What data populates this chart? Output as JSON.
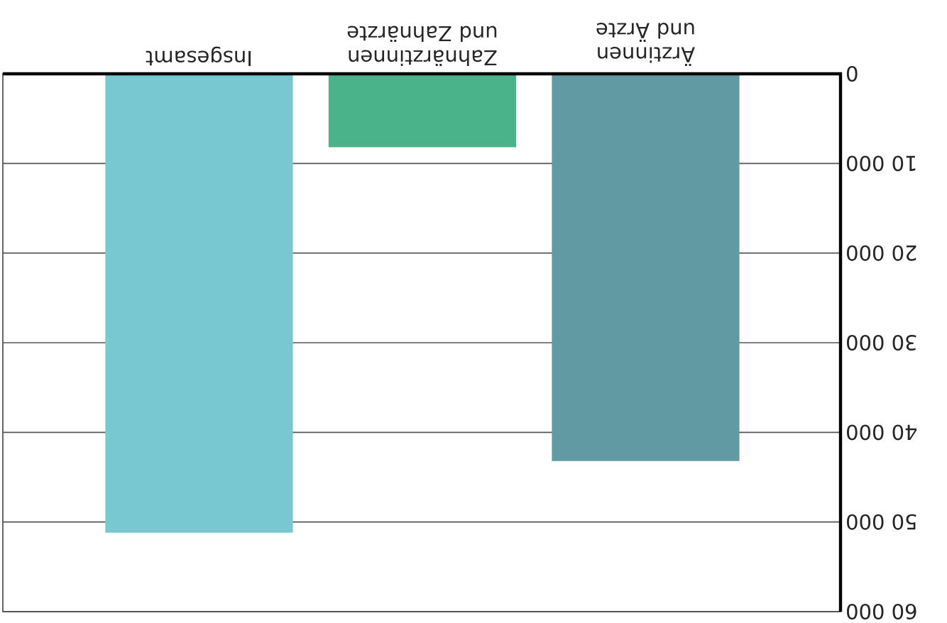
{
  "chart_data": {
    "type": "bar",
    "categories": [
      "Insgesamt",
      "Zahnärztinnen und Zahnärzte",
      "Ärztinnen und Ärzte"
    ],
    "values": [
      51200,
      8200,
      43200
    ],
    "colors": [
      "#77c8d0",
      "#4bb38a",
      "#629aa3"
    ],
    "ylim": [
      60000,
      0
    ],
    "yticks": [
      0,
      {
        "value": 10000,
        "label": "10 000"
      },
      {
        "value": 20000,
        "label": "20 000"
      },
      {
        "value": 30000,
        "label": "30 000"
      },
      {
        "value": 40000,
        "label": "40 000"
      },
      {
        "value": 50000,
        "label": "50 000"
      },
      {
        "value": 60000,
        "label": "60 000"
      }
    ],
    "grid": "y"
  }
}
